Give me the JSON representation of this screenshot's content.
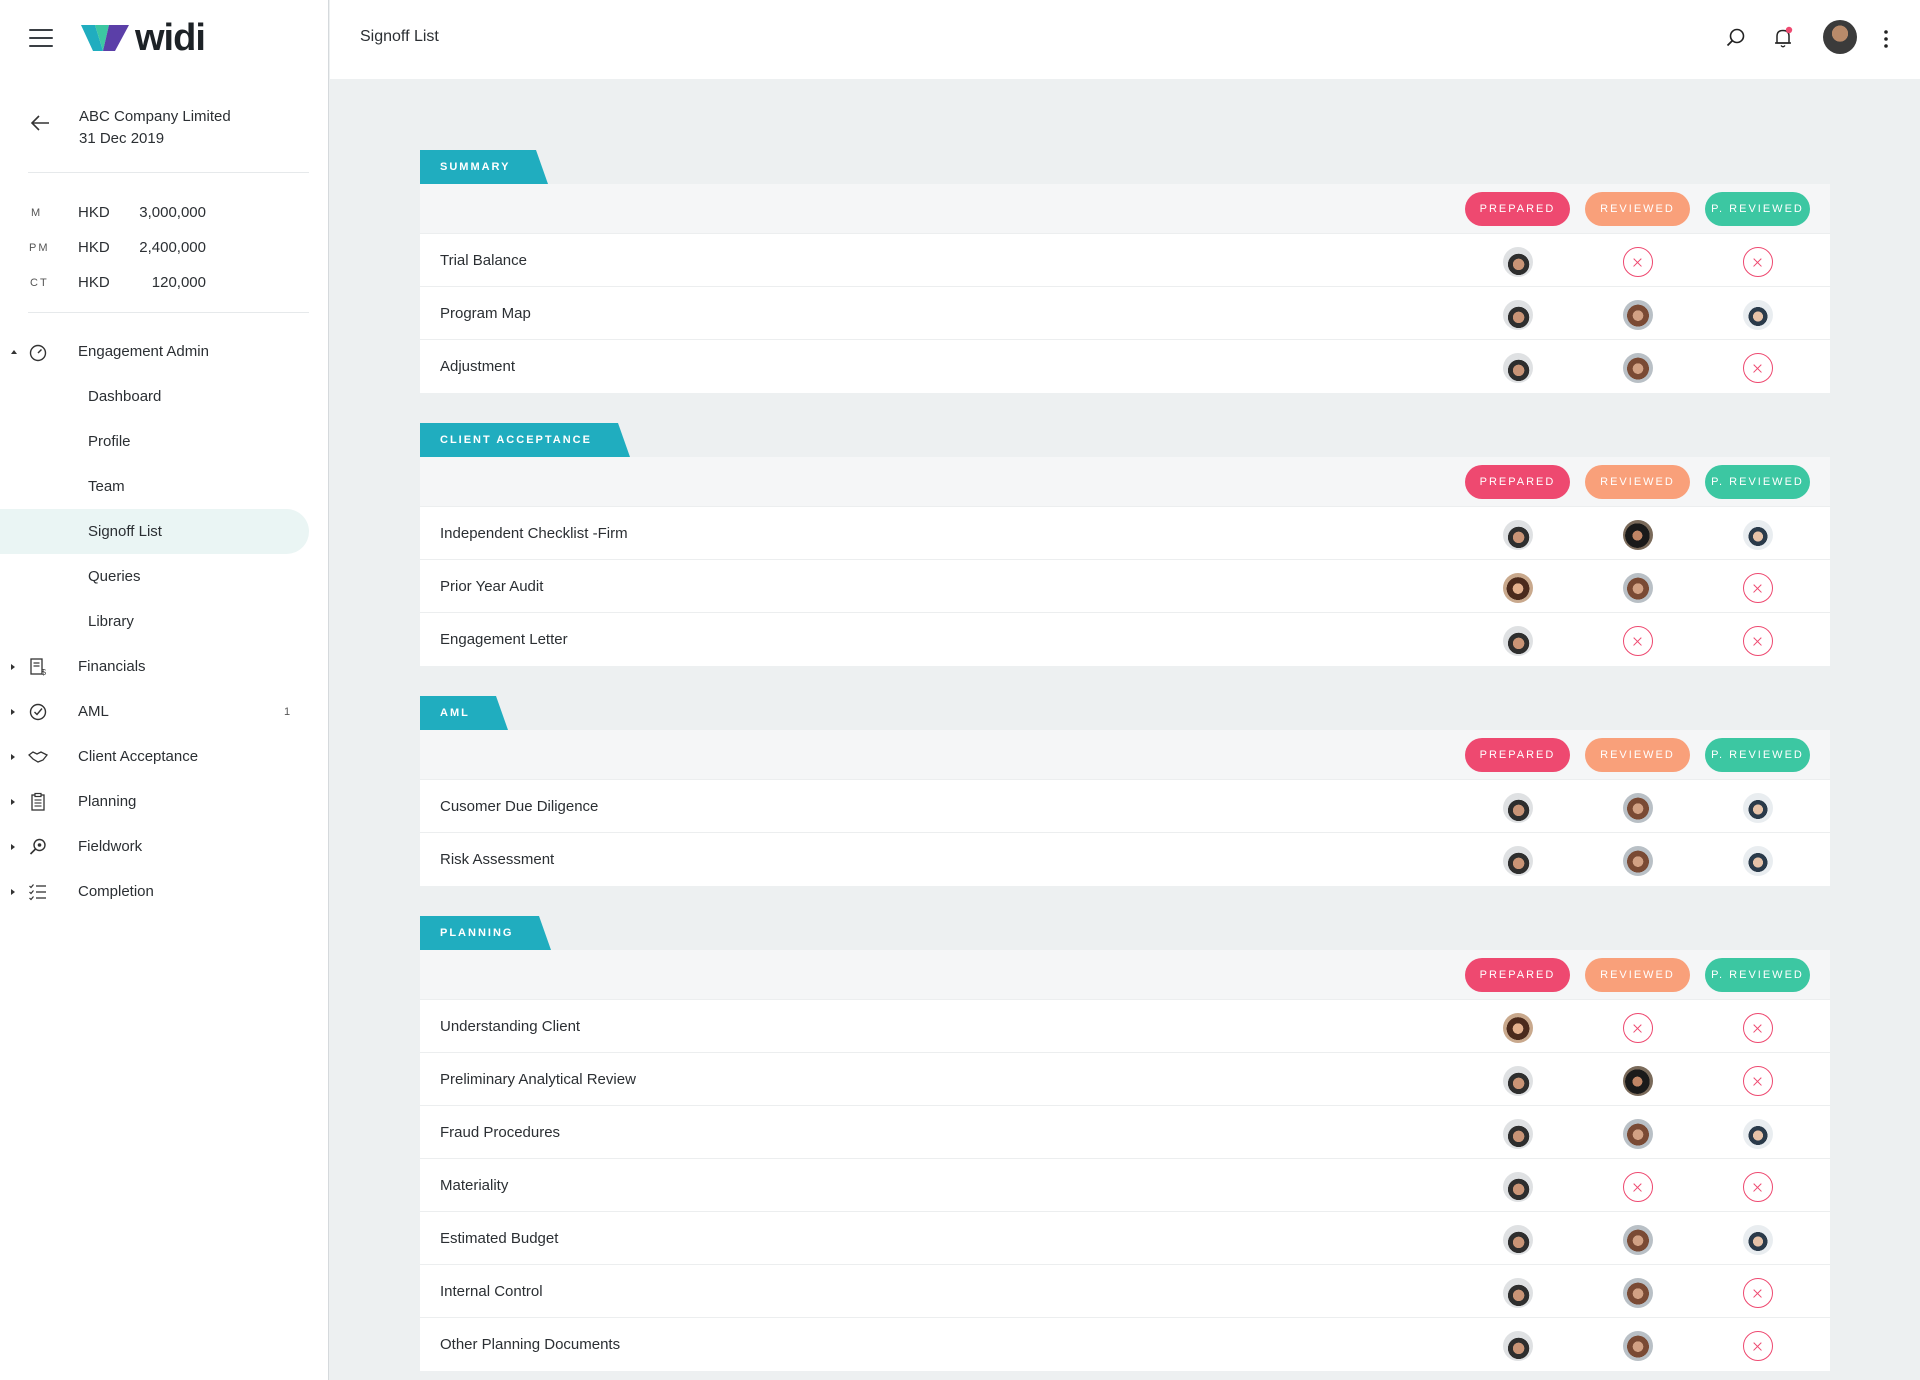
{
  "app": {
    "logo_text": "widi",
    "page_title": "Signoff List"
  },
  "engagement": {
    "company": "ABC Company Limited",
    "date": "31 Dec 2019"
  },
  "amounts": [
    {
      "key": "M",
      "currency": "HKD",
      "value": "3,000,000"
    },
    {
      "key": "PM",
      "currency": "HKD",
      "value": "2,400,000"
    },
    {
      "key": "CT",
      "currency": "HKD",
      "value": "120,000"
    }
  ],
  "nav": {
    "engagement_admin": "Engagement Admin",
    "sub": [
      "Dashboard",
      "Profile",
      "Team",
      "Signoff List",
      "Queries",
      "Library"
    ],
    "financials": "Financials",
    "aml": "AML",
    "aml_badge": "1",
    "client_acceptance": "Client Acceptance",
    "planning": "Planning",
    "fieldwork": "Fieldwork",
    "completion": "Completion"
  },
  "status_labels": {
    "prepared": "PREPARED",
    "reviewed": "REVIEWED",
    "p_reviewed": "P. REVIEWED"
  },
  "colors": {
    "accent": "#20adbf",
    "prepared": "#ee4970",
    "reviewed": "#f9a07a",
    "p_reviewed": "#3cc7a2"
  },
  "sections": [
    {
      "title": "SUMMARY",
      "rows": [
        {
          "name": "Trial Balance",
          "cells": [
            "a",
            "x",
            "x"
          ]
        },
        {
          "name": "Program Map",
          "cells": [
            "a",
            "b",
            "c"
          ]
        },
        {
          "name": "Adjustment",
          "cells": [
            "a",
            "b",
            "x"
          ]
        }
      ]
    },
    {
      "title": "CLIENT ACCEPTANCE",
      "rows": [
        {
          "name": "Independent Checklist -Firm",
          "cells": [
            "a",
            "d",
            "c"
          ]
        },
        {
          "name": "Prior Year Audit",
          "cells": [
            "e",
            "b",
            "x"
          ]
        },
        {
          "name": "Engagement Letter",
          "cells": [
            "a",
            "x",
            "x"
          ]
        }
      ]
    },
    {
      "title": "AML",
      "rows": [
        {
          "name": "Cusomer Due Diligence",
          "cells": [
            "a",
            "b",
            "c"
          ]
        },
        {
          "name": "Risk Assessment",
          "cells": [
            "a",
            "b",
            "c"
          ]
        }
      ]
    },
    {
      "title": "PLANNING",
      "rows": [
        {
          "name": "Understanding Client",
          "cells": [
            "e",
            "x",
            "x"
          ]
        },
        {
          "name": "Preliminary Analytical Review",
          "cells": [
            "a",
            "d",
            "x"
          ]
        },
        {
          "name": "Fraud Procedures",
          "cells": [
            "a",
            "b",
            "c"
          ]
        },
        {
          "name": "Materiality",
          "cells": [
            "a",
            "x",
            "x"
          ]
        },
        {
          "name": "Estimated Budget",
          "cells": [
            "a",
            "b",
            "c"
          ]
        },
        {
          "name": "Internal Control",
          "cells": [
            "a",
            "b",
            "x"
          ]
        },
        {
          "name": "Other Planning Documents",
          "cells": [
            "a",
            "b",
            "x"
          ]
        }
      ]
    }
  ]
}
